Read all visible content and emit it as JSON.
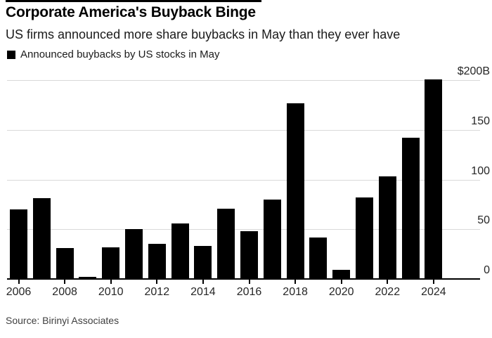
{
  "header": {
    "title": "Corporate America's Buyback Binge",
    "subtitle": "US firms announced more share buybacks in May than they ever have"
  },
  "legend": {
    "label": "Announced buybacks by US stocks in May",
    "marker": "black-square"
  },
  "footer": {
    "source": "Source: Birinyi Associates"
  },
  "chart_data": {
    "type": "bar",
    "title": "Corporate America's Buyback Binge",
    "subtitle": "US firms announced more share buybacks in May than they ever have",
    "series_name": "Announced buybacks by US stocks in May",
    "unit": "billions of US dollars",
    "categories": [
      2006,
      2007,
      2008,
      2009,
      2010,
      2011,
      2012,
      2013,
      2014,
      2015,
      2016,
      2017,
      2018,
      2019,
      2020,
      2021,
      2022,
      2023,
      2024
    ],
    "values": [
      70,
      81,
      31,
      2,
      32,
      50,
      35,
      56,
      33,
      71,
      48,
      80,
      177,
      42,
      9,
      82,
      103,
      142,
      201
    ],
    "x_tick_years": [
      2006,
      2008,
      2010,
      2012,
      2014,
      2016,
      2018,
      2020,
      2022,
      2024
    ],
    "y_ticks": [
      0,
      50,
      100,
      150
    ],
    "y_top_label": "$200B",
    "ylim": [
      0,
      205
    ],
    "y_axis_side": "right",
    "legend_position": "top-left",
    "grid": true,
    "colors": {
      "bar": "#000000",
      "grid": "#d9d9d9",
      "axis": "#000000",
      "text": "#262626"
    },
    "source": "Source: Birinyi Associates"
  }
}
